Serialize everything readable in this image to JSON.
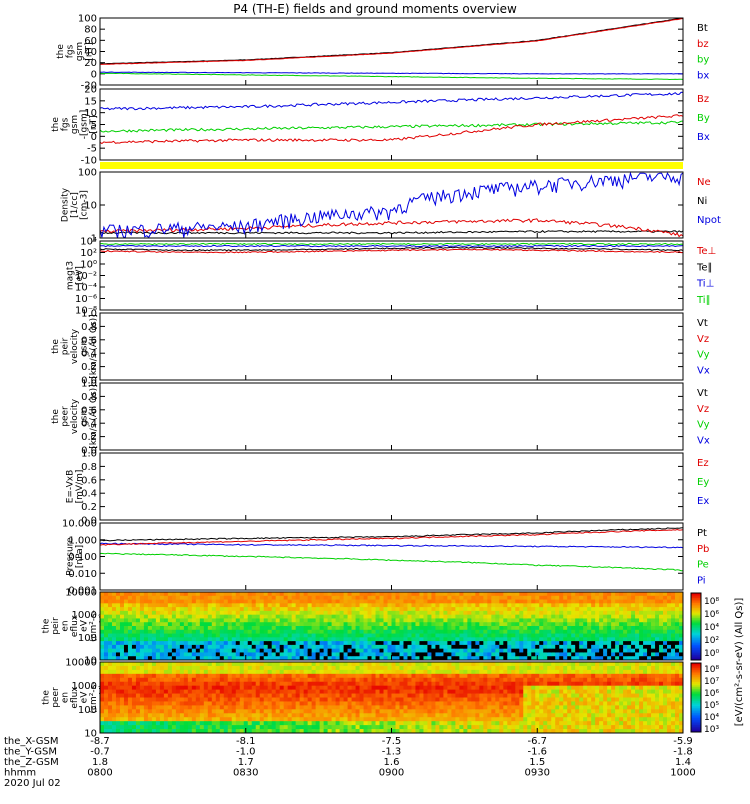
{
  "title": "P4 (TH-E) fields and ground moments overview",
  "colors": {
    "black": "#000000",
    "red": "#e00000",
    "green": "#00d000",
    "blue": "#0000e0",
    "yellow": "#ffff00"
  },
  "panels": [
    {
      "id": "fgs",
      "ylabel": [
        "the",
        "fgs",
        "gsm",
        "[nT]"
      ],
      "ticks": [
        "100",
        "80",
        "60",
        "40",
        "20",
        "0",
        "-20"
      ],
      "legend": [
        {
          "text": "Bt",
          "color": "black"
        },
        {
          "text": "bz",
          "color": "red"
        },
        {
          "text": "by",
          "color": "green"
        },
        {
          "text": "bx",
          "color": "blue"
        }
      ]
    },
    {
      "id": "fgs-zoom",
      "ylabel": [
        "the",
        "fgs",
        "gsm",
        "-[gsm]",
        "[nT]"
      ],
      "ticks": [
        "20",
        "15",
        "10",
        "5",
        "0",
        "-5",
        "-10"
      ],
      "legend": [
        {
          "text": "Bz",
          "color": "red"
        },
        {
          "text": "By",
          "color": "green"
        },
        {
          "text": "Bx",
          "color": "blue"
        }
      ]
    },
    {
      "id": "density",
      "ylabel": [
        "Density",
        "[1/cc]",
        "[cm-3]"
      ],
      "ticks": [
        "100",
        "10",
        "1"
      ],
      "legend": [
        {
          "text": "Ne",
          "color": "red"
        },
        {
          "text": "Ni",
          "color": "black"
        },
        {
          "text": "Npot",
          "color": "blue"
        }
      ]
    },
    {
      "id": "temp",
      "ylabel": [
        "magt3",
        "[eV]"
      ],
      "ticks": [
        "10⁴",
        "10²",
        "10⁰",
        "10⁻²",
        "10⁻⁴",
        "10⁻⁶",
        "10⁻⁸"
      ],
      "legend": [
        {
          "text": "Te⊥",
          "color": "red"
        },
        {
          "text": "Te∥",
          "color": "black"
        },
        {
          "text": "Ti⊥",
          "color": "blue"
        },
        {
          "text": "Ti∥",
          "color": "green"
        }
      ]
    },
    {
      "id": "vi",
      "ylabel": [
        "the",
        "peir",
        "velocity",
        "gsm",
        "[km/s (All Qs)]"
      ],
      "ticks": [
        "1.0",
        "0.8",
        "0.6",
        "0.4",
        "0.2",
        "0.0"
      ],
      "legend": [
        {
          "text": "Vt",
          "color": "black"
        },
        {
          "text": "Vz",
          "color": "red"
        },
        {
          "text": "Vy",
          "color": "green"
        },
        {
          "text": "Vx",
          "color": "blue"
        }
      ]
    },
    {
      "id": "ve",
      "ylabel": [
        "the",
        "peer",
        "velocity",
        "gsm",
        "[km/s (All Qs)]"
      ],
      "ticks": [
        "1.0",
        "0.8",
        "0.6",
        "0.4",
        "0.2",
        "0.0"
      ],
      "legend": [
        {
          "text": "Vt",
          "color": "black"
        },
        {
          "text": "Vz",
          "color": "red"
        },
        {
          "text": "Vy",
          "color": "green"
        },
        {
          "text": "Vx",
          "color": "blue"
        }
      ]
    },
    {
      "id": "e",
      "ylabel": [
        "E=-VxB",
        "[mV/m]"
      ],
      "ticks": [
        "1.0",
        "0.8",
        "0.6",
        "0.4",
        "0.2",
        "0.0"
      ],
      "legend": [
        {
          "text": "Ez",
          "color": "red"
        },
        {
          "text": "Ey",
          "color": "green"
        },
        {
          "text": "Ex",
          "color": "blue"
        }
      ]
    },
    {
      "id": "pressure",
      "ylabel": [
        "Pressure",
        "[nPa]"
      ],
      "ticks": [
        "10.000",
        "1.000",
        "0.100",
        "0.010",
        "0.001"
      ],
      "legend": [
        {
          "text": "Pt",
          "color": "black"
        },
        {
          "text": "Pb",
          "color": "red"
        },
        {
          "text": "Pe",
          "color": "green"
        },
        {
          "text": "Pi",
          "color": "blue"
        }
      ]
    },
    {
      "id": "ion-spec",
      "ylabel": [
        "the",
        "peir",
        "en",
        "eflux",
        "eV",
        "(cm²-s-",
        "sr-eV)"
      ],
      "ticks": [
        "10000",
        "1000",
        "100",
        "10"
      ],
      "legend": []
    },
    {
      "id": "elec-spec",
      "ylabel": [
        "the",
        "peer",
        "en",
        "eflux",
        "eV",
        "(cm²-s-",
        "sr-eV)"
      ],
      "ticks": [
        "10000",
        "1000",
        "100",
        "10"
      ],
      "legend": []
    }
  ],
  "colorbar": {
    "label": "[eV/(cm²-s-sr-eV) (All Qs)]",
    "top_ticks": [
      "10⁸",
      "10⁶",
      "10⁴",
      "10²",
      "10⁰"
    ],
    "bottom_ticks": [
      "10⁸",
      "10⁷",
      "10⁶",
      "10⁵",
      "10⁴",
      "10³"
    ]
  },
  "xaxis": {
    "rows": [
      {
        "label": "the_X-GSM",
        "values": [
          "-8.7",
          "-8.1",
          "-7.5",
          "-6.7",
          "-5.9"
        ]
      },
      {
        "label": "the_Y-GSM",
        "values": [
          "-0.7",
          "-1.0",
          "-1.3",
          "-1.6",
          "-1.8"
        ]
      },
      {
        "label": "the_Z-GSM",
        "values": [
          "1.8",
          "1.7",
          "1.6",
          "1.5",
          "1.4"
        ]
      },
      {
        "label": "hhmm",
        "values": [
          "0800",
          "0830",
          "0900",
          "0930",
          "1000"
        ]
      }
    ],
    "date": "2020 Jul 02"
  },
  "chart_data": {
    "type": "line",
    "title": "P4 (TH-E) fields and ground moments overview",
    "x": [
      "0800",
      "0830",
      "0900",
      "0930",
      "1000"
    ],
    "series": [
      {
        "name": "Bt",
        "panel": "fgs",
        "values": [
          18,
          25,
          38,
          60,
          100
        ]
      },
      {
        "name": "bz",
        "panel": "fgs",
        "values": [
          17,
          24,
          37,
          59,
          99
        ]
      },
      {
        "name": "by",
        "panel": "fgs",
        "values": [
          1,
          -2,
          -5,
          -8,
          -10
        ]
      },
      {
        "name": "bx",
        "panel": "fgs",
        "values": [
          3,
          2,
          1,
          0,
          0
        ]
      },
      {
        "name": "Bz",
        "panel": "fgs-zoom",
        "values": [
          -4,
          -3,
          -3,
          4,
          8
        ]
      },
      {
        "name": "By",
        "panel": "fgs-zoom",
        "values": [
          1,
          2,
          3,
          4,
          5
        ]
      },
      {
        "name": "Bx",
        "panel": "fgs-zoom",
        "values": [
          11,
          12,
          14,
          16,
          18
        ]
      },
      {
        "name": "Ne",
        "panel": "density",
        "values": [
          0.9,
          1.2,
          2,
          2.5,
          0.6
        ]
      },
      {
        "name": "Ni",
        "panel": "density",
        "values": [
          0.8,
          0.8,
          0.8,
          0.9,
          0.9
        ]
      },
      {
        "name": "Npot",
        "panel": "density",
        "values": [
          1,
          1.5,
          6,
          60,
          150
        ]
      },
      {
        "name": "Pt",
        "panel": "pressure",
        "values": [
          0.9,
          1.2,
          1.5,
          2.5,
          5
        ]
      },
      {
        "name": "Pb",
        "panel": "pressure",
        "values": [
          0.5,
          0.8,
          1.2,
          2,
          4
        ]
      },
      {
        "name": "Pe",
        "panel": "pressure",
        "values": [
          0.15,
          0.1,
          0.06,
          0.03,
          0.015
        ]
      },
      {
        "name": "Pi",
        "panel": "pressure",
        "values": [
          0.6,
          0.5,
          0.45,
          0.4,
          0.35
        ]
      }
    ]
  }
}
